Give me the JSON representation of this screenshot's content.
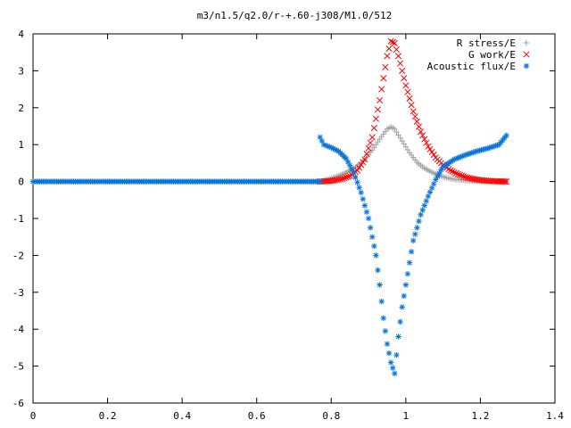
{
  "chart_data": {
    "type": "scatter",
    "title": "m3/n1.5/q2.0/r-+.60-j308/M1.0/512",
    "xlabel": "",
    "ylabel": "",
    "xlim": [
      0,
      1.4
    ],
    "ylim": [
      -6,
      4
    ],
    "x_ticks": [
      "0",
      "0.2",
      "0.4",
      "0.6",
      "0.8",
      "1",
      "1.2",
      "1.4"
    ],
    "y_ticks": [
      "4",
      "3",
      "2",
      "1",
      "0",
      "-1",
      "-2",
      "-3",
      "-4",
      "-5",
      "-6"
    ],
    "grid": false,
    "legend_position": "top-right",
    "series": [
      {
        "name": "R stress/E",
        "marker": "plus",
        "color": "#a0a0a0",
        "points": [
          [
            0.77,
            0.0
          ],
          [
            0.79,
            0.06
          ],
          [
            0.81,
            0.12
          ],
          [
            0.83,
            0.2
          ],
          [
            0.85,
            0.3
          ],
          [
            0.87,
            0.42
          ],
          [
            0.89,
            0.6
          ],
          [
            0.91,
            0.85
          ],
          [
            0.93,
            1.15
          ],
          [
            0.95,
            1.42
          ],
          [
            0.96,
            1.48
          ],
          [
            0.97,
            1.42
          ],
          [
            0.99,
            1.1
          ],
          [
            1.01,
            0.78
          ],
          [
            1.03,
            0.52
          ],
          [
            1.05,
            0.36
          ],
          [
            1.07,
            0.25
          ],
          [
            1.09,
            0.16
          ],
          [
            1.11,
            0.1
          ],
          [
            1.13,
            0.06
          ],
          [
            1.15,
            0.04
          ],
          [
            1.18,
            0.02
          ],
          [
            1.21,
            0.01
          ],
          [
            1.24,
            0.0
          ],
          [
            1.27,
            0.0
          ]
        ]
      },
      {
        "name": "G work/E",
        "marker": "cross",
        "color": "#ff0000",
        "points": [
          [
            0.77,
            0.0
          ],
          [
            0.79,
            0.01
          ],
          [
            0.81,
            0.03
          ],
          [
            0.83,
            0.08
          ],
          [
            0.85,
            0.15
          ],
          [
            0.87,
            0.3
          ],
          [
            0.89,
            0.6
          ],
          [
            0.91,
            1.2
          ],
          [
            0.93,
            2.2
          ],
          [
            0.95,
            3.4
          ],
          [
            0.96,
            3.8
          ],
          [
            0.97,
            3.75
          ],
          [
            0.98,
            3.4
          ],
          [
            1.0,
            2.6
          ],
          [
            1.02,
            1.9
          ],
          [
            1.04,
            1.35
          ],
          [
            1.06,
            0.95
          ],
          [
            1.08,
            0.65
          ],
          [
            1.1,
            0.45
          ],
          [
            1.12,
            0.3
          ],
          [
            1.14,
            0.2
          ],
          [
            1.16,
            0.12
          ],
          [
            1.18,
            0.07
          ],
          [
            1.2,
            0.04
          ],
          [
            1.22,
            0.02
          ],
          [
            1.24,
            0.01
          ],
          [
            1.27,
            0.0
          ]
        ]
      },
      {
        "name": "Acoustic flux/E",
        "marker": "star",
        "color": "#0a74da",
        "points": [
          [
            0.0,
            0.0
          ],
          [
            0.1,
            0.0
          ],
          [
            0.2,
            0.0
          ],
          [
            0.3,
            0.0
          ],
          [
            0.4,
            0.0
          ],
          [
            0.5,
            0.0
          ],
          [
            0.6,
            0.0
          ],
          [
            0.7,
            0.0
          ],
          [
            0.77,
            0.0
          ],
          [
            0.77,
            1.2
          ],
          [
            0.78,
            1.0
          ],
          [
            0.8,
            0.92
          ],
          [
            0.82,
            0.82
          ],
          [
            0.84,
            0.62
          ],
          [
            0.86,
            0.25
          ],
          [
            0.88,
            -0.3
          ],
          [
            0.9,
            -1.0
          ],
          [
            0.92,
            -2.0
          ],
          [
            0.93,
            -2.8
          ],
          [
            0.94,
            -3.7
          ],
          [
            0.95,
            -4.4
          ],
          [
            0.96,
            -4.9
          ],
          [
            0.97,
            -5.2
          ],
          [
            0.98,
            -4.2
          ],
          [
            0.99,
            -3.4
          ],
          [
            1.0,
            -2.8
          ],
          [
            1.01,
            -2.2
          ],
          [
            1.02,
            -1.6
          ],
          [
            1.04,
            -0.9
          ],
          [
            1.06,
            -0.4
          ],
          [
            1.08,
            0.05
          ],
          [
            1.1,
            0.4
          ],
          [
            1.13,
            0.6
          ],
          [
            1.16,
            0.72
          ],
          [
            1.19,
            0.82
          ],
          [
            1.22,
            0.9
          ],
          [
            1.25,
            1.0
          ],
          [
            1.27,
            1.25
          ]
        ]
      }
    ]
  }
}
